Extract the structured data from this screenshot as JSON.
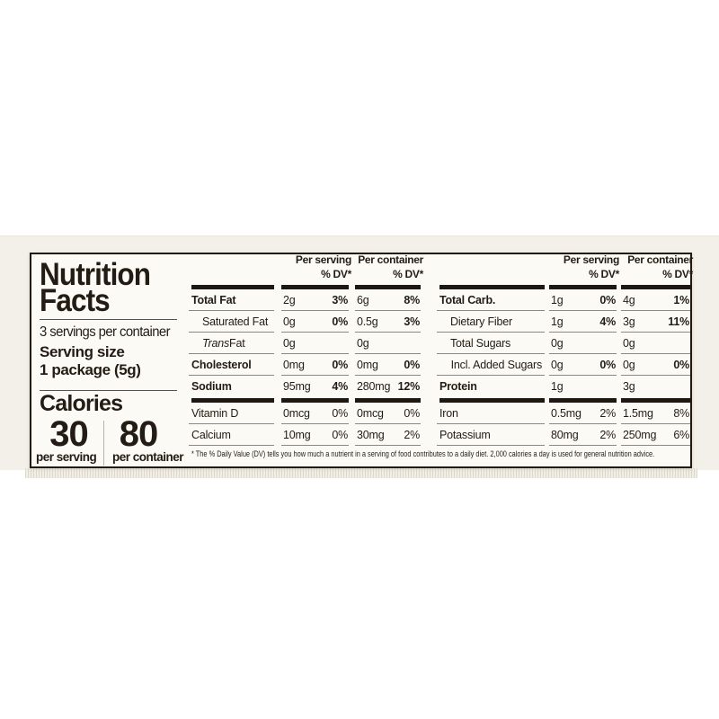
{
  "colors": {
    "ink": "#221b12",
    "label_bg": "#fcfaf4",
    "package_bg": "#f3f0e9",
    "hairline": "#8d8880"
  },
  "panel": {
    "title_line1": "Nutrition",
    "title_line2": "Facts",
    "servings_per_container": "3 servings per container",
    "serving_size_label": "Serving size",
    "serving_size_value": "1 package (5g)",
    "calories_label": "Calories",
    "calories": [
      {
        "value": "30",
        "label": "per serving"
      },
      {
        "value": "80",
        "label": "per container"
      }
    ]
  },
  "columns": {
    "per_serving": "Per serving",
    "per_container": "Per container",
    "dv": "% DV*"
  },
  "tables": [
    {
      "rows": [
        {
          "name": "Total Fat",
          "bold": true,
          "indent": 0,
          "barAbove": true,
          "sAmt": "2g",
          "sDv": "3%",
          "cAmt": "6g",
          "cDv": "8%",
          "dvBold": true
        },
        {
          "name": "Saturated Fat",
          "bold": false,
          "indent": 1,
          "barAbove": false,
          "sAmt": "0g",
          "sDv": "0%",
          "cAmt": "0.5g",
          "cDv": "3%",
          "dvBold": true
        },
        {
          "name": "Trans Fat",
          "bold": false,
          "indent": 1,
          "italicFirst": true,
          "barAbove": false,
          "sAmt": "0g",
          "sDv": "",
          "cAmt": "0g",
          "cDv": "",
          "dvBold": false
        },
        {
          "name": "Cholesterol",
          "bold": true,
          "indent": 0,
          "barAbove": false,
          "sAmt": "0mg",
          "sDv": "0%",
          "cAmt": "0mg",
          "cDv": "0%",
          "dvBold": true
        },
        {
          "name": "Sodium",
          "bold": true,
          "indent": 0,
          "barAbove": false,
          "noLine": true,
          "sAmt": "95mg",
          "sDv": "4%",
          "cAmt": "280mg",
          "cDv": "12%",
          "dvBold": true
        },
        {
          "name": "Vitamin D",
          "bold": false,
          "indent": 0,
          "barAbove": true,
          "sAmt": "0mcg",
          "sDv": "0%",
          "cAmt": "0mcg",
          "cDv": "0%",
          "dvBold": false
        },
        {
          "name": "Calcium",
          "bold": false,
          "indent": 0,
          "barAbove": false,
          "sAmt": "10mg",
          "sDv": "0%",
          "cAmt": "30mg",
          "cDv": "2%",
          "dvBold": false
        }
      ]
    },
    {
      "rows": [
        {
          "name": "Total Carb.",
          "bold": true,
          "indent": 0,
          "barAbove": true,
          "sAmt": "1g",
          "sDv": "0%",
          "cAmt": "4g",
          "cDv": "1%",
          "dvBold": true
        },
        {
          "name": "Dietary Fiber",
          "bold": false,
          "indent": 1,
          "barAbove": false,
          "sAmt": "1g",
          "sDv": "4%",
          "cAmt": "3g",
          "cDv": "11%",
          "dvBold": true
        },
        {
          "name": "Total Sugars",
          "bold": false,
          "indent": 1,
          "barAbove": false,
          "sAmt": "0g",
          "sDv": "",
          "cAmt": "0g",
          "cDv": "",
          "dvBold": false
        },
        {
          "name": "Incl. Added Sugars",
          "bold": false,
          "indent": 2,
          "barAbove": false,
          "sAmt": "0g",
          "sDv": "0%",
          "cAmt": "0g",
          "cDv": "0%",
          "dvBold": true
        },
        {
          "name": "Protein",
          "bold": true,
          "indent": 0,
          "barAbove": false,
          "noLine": true,
          "sAmt": "1g",
          "sDv": "",
          "cAmt": "3g",
          "cDv": "",
          "dvBold": false
        },
        {
          "name": "Iron",
          "bold": false,
          "indent": 0,
          "barAbove": true,
          "sAmt": "0.5mg",
          "sDv": "2%",
          "cAmt": "1.5mg",
          "cDv": "8%",
          "dvBold": false
        },
        {
          "name": "Potassium",
          "bold": false,
          "indent": 0,
          "barAbove": false,
          "sAmt": "80mg",
          "sDv": "2%",
          "cAmt": "250mg",
          "cDv": "6%",
          "dvBold": false
        }
      ]
    }
  ],
  "footnote": "* The % Daily Value (DV) tells you how much a nutrient in a serving of food contributes to a daily diet. 2,000 calories a day is used for general nutrition advice."
}
